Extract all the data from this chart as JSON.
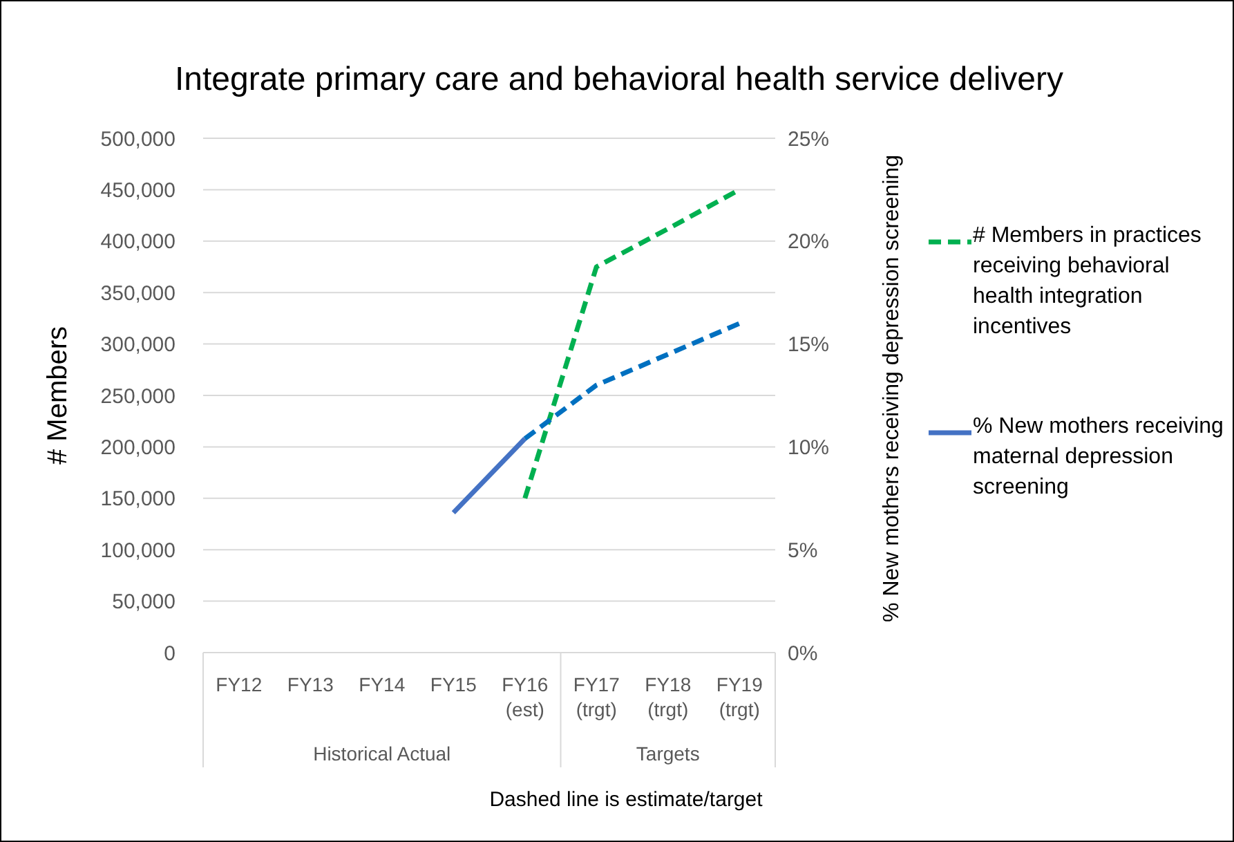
{
  "chart_data": {
    "type": "line",
    "title": "Integrate primary care and behavioral health service delivery",
    "xlabel": "Dashed line is estimate/target",
    "ylabel": "# Members",
    "y2label": "% New mothers receiving depression screening",
    "categories": [
      "FY12",
      "FY13",
      "FY14",
      "FY15",
      "FY16 (est)",
      "FY17 (trgt)",
      "FY18 (trgt)",
      "FY19 (trgt)"
    ],
    "annotations": [
      "Historical Actual",
      "Targets"
    ],
    "series": [
      {
        "name": "# Members in practices receiving behavioral health integration incentives",
        "color": "#00b050",
        "line_style": "dashed",
        "values": [
          null,
          null,
          null,
          null,
          150000,
          375000,
          412000,
          450000
        ]
      },
      {
        "name": "% New mothers receiving maternal depression screening",
        "color": "#4472c4",
        "line_style": "solid",
        "axis": "y2",
        "values": [
          null,
          null,
          null,
          6.8,
          10.4,
          null,
          null,
          null
        ]
      },
      {
        "color": "#0070c0",
        "line_style": "dashed",
        "axis": "y2",
        "values": [
          null,
          null,
          null,
          null,
          10.4,
          13.0,
          14.5,
          16.0
        ]
      }
    ],
    "ylim": [
      0,
      500000
    ],
    "yticks": [
      {
        "value": 0,
        "label": "0"
      },
      {
        "value": 50000,
        "label": "50,000"
      },
      {
        "value": 100000,
        "label": "100,000"
      },
      {
        "value": 150000,
        "label": "150,000"
      },
      {
        "value": 200000,
        "label": "200,000"
      },
      {
        "value": 250000,
        "label": "250,000"
      },
      {
        "value": 300000,
        "label": "300,000"
      },
      {
        "value": 350000,
        "label": "350,000"
      },
      {
        "value": 400000,
        "label": "400,000"
      },
      {
        "value": 450000,
        "label": "450,000"
      },
      {
        "value": 500000,
        "label": "500,000"
      }
    ],
    "y2lim": [
      0,
      25
    ],
    "y2ticks": [
      {
        "value": 0,
        "label": "0%"
      },
      {
        "value": 5,
        "label": "5%"
      },
      {
        "value": 10,
        "label": "10%"
      },
      {
        "value": 15,
        "label": "15%"
      },
      {
        "value": 20,
        "label": "20%"
      },
      {
        "value": 25,
        "label": "25%"
      }
    ],
    "grid": "y",
    "legend": "right",
    "marker": "none"
  }
}
